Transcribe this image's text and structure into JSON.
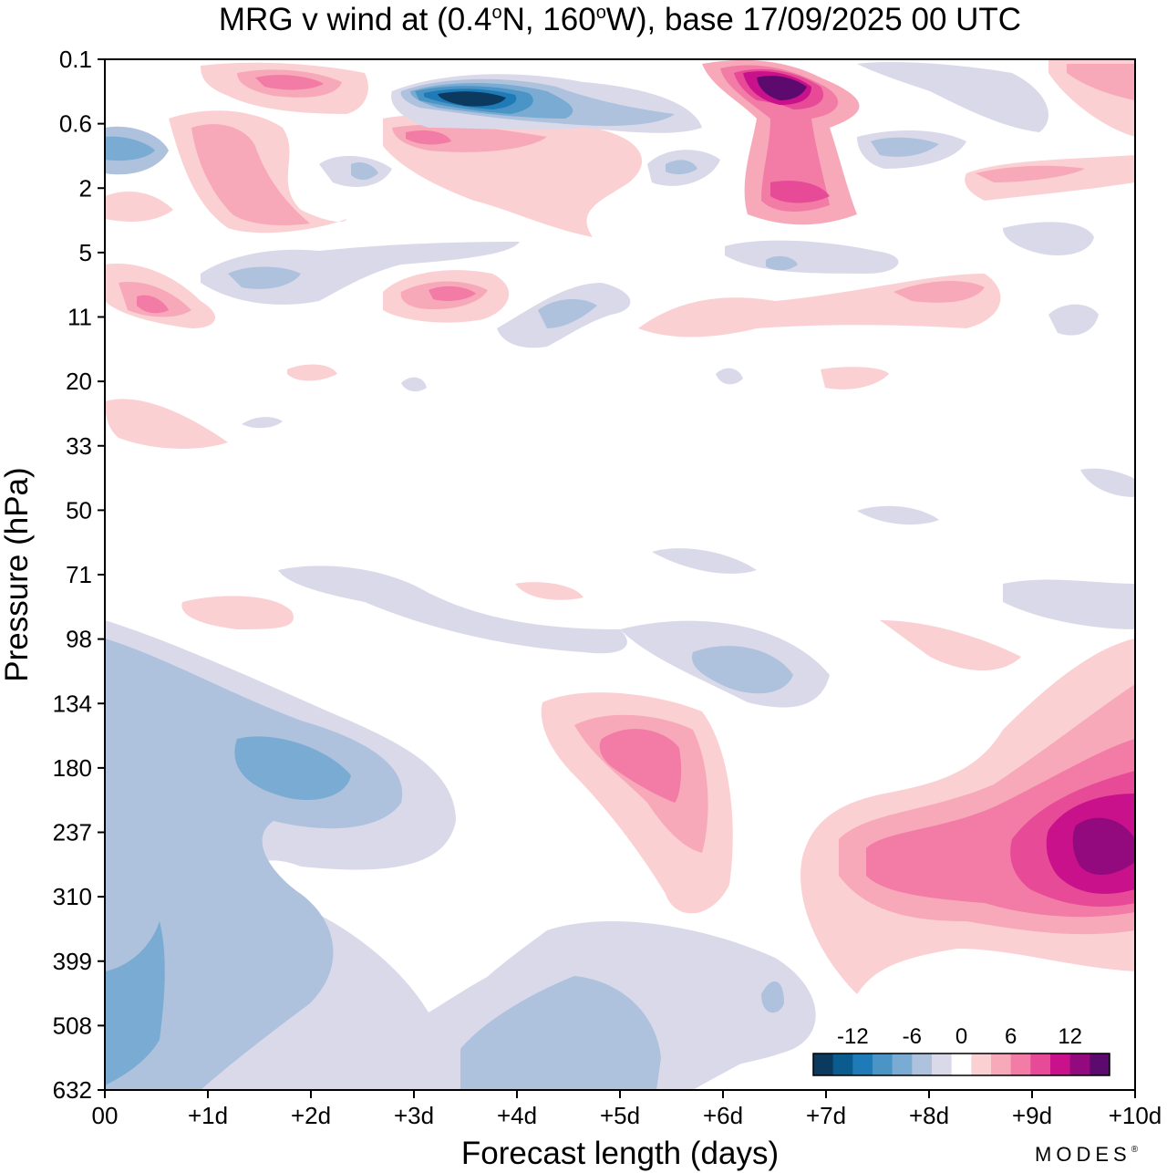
{
  "chart_data": {
    "type": "heatmap",
    "title_parts": {
      "prefix": "MRG v wind at (0.4",
      "deg1": "o",
      "mid": "N, 160",
      "deg2": "o",
      "suffix": "W),  base 17/09/2025  00 UTC"
    },
    "xlabel": "Forecast length (days)",
    "ylabel": "Pressure (hPa)",
    "x_ticks": [
      "00",
      "+1d",
      "+2d",
      "+3d",
      "+4d",
      "+5d",
      "+6d",
      "+7d",
      "+8d",
      "+9d",
      "+10d"
    ],
    "y_ticks": [
      "0.1",
      "0.6",
      "2",
      "5",
      "11",
      "20",
      "33",
      "50",
      "71",
      "98",
      "134",
      "180",
      "237",
      "310",
      "399",
      "508",
      "632"
    ],
    "xlim_days": [
      0,
      10
    ],
    "colorbar": {
      "labels": [
        "-12",
        "-6",
        "0",
        "6",
        "12"
      ],
      "levels": [
        -16,
        -14,
        -12,
        -10,
        -8,
        -6,
        -4,
        -2,
        2,
        4,
        6,
        8,
        10,
        12,
        14,
        16
      ],
      "colors": [
        "#0b3a5e",
        "#0a5c8f",
        "#1f7ab8",
        "#4a95c6",
        "#7aacd3",
        "#aec1dd",
        "#d9d9ea",
        "#ffffff",
        "#fbd0d2",
        "#f7a9b9",
        "#f27ca6",
        "#e74a97",
        "#c8118a",
        "#93097e",
        "#5c0a6e"
      ]
    },
    "features": [
      {
        "name": "negative-anomaly-lower-left",
        "value": -6,
        "x_days": [
          0,
          1.8
        ],
        "y_hpa": [
          150,
          632
        ]
      },
      {
        "name": "negative-anomaly-lower-middle",
        "value": -6,
        "x_days": [
          3.5,
          5.5
        ],
        "y_hpa": [
          440,
          632
        ]
      },
      {
        "name": "positive-anomaly-day5",
        "value": 8,
        "x_days": [
          4.3,
          6.1
        ],
        "y_hpa": [
          125,
          330
        ]
      },
      {
        "name": "positive-anomaly-day9-10",
        "value": 14,
        "x_days": [
          7,
          10
        ],
        "y_hpa": [
          190,
          460
        ]
      },
      {
        "name": "negative-anomaly-top-day3-4",
        "value": -16,
        "x_days": [
          2.8,
          5.8
        ],
        "y_hpa": [
          0.2,
          1
        ]
      },
      {
        "name": "positive-anomaly-top-day6-7",
        "value": 16,
        "x_days": [
          5.8,
          7.2
        ],
        "y_hpa": [
          0.1,
          3
        ]
      }
    ],
    "branding": "MODES",
    "branding_mark": "®"
  }
}
